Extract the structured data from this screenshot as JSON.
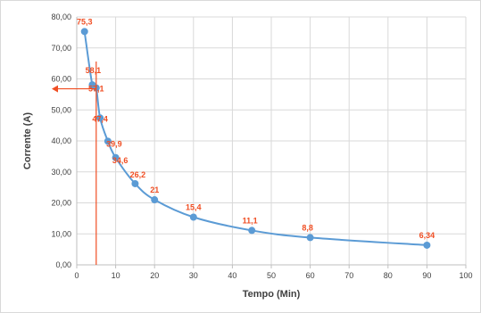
{
  "chart_data": {
    "type": "scatter",
    "title": "",
    "xlabel": "Tempo (Min)",
    "ylabel": "Corrente (A)",
    "xlim": [
      0,
      100
    ],
    "ylim": [
      0,
      80
    ],
    "x_ticks": [
      "0",
      "10",
      "20",
      "30",
      "40",
      "50",
      "60",
      "70",
      "80",
      "90",
      "100"
    ],
    "y_ticks": [
      "0,00",
      "10,00",
      "20,00",
      "30,00",
      "40,00",
      "50,00",
      "60,00",
      "70,00",
      "80,00"
    ],
    "grid": true,
    "legend": "none",
    "series": [
      {
        "x": [
          2,
          4,
          5,
          6,
          8,
          10,
          15,
          20,
          30,
          45,
          60,
          90
        ],
        "y": [
          75.3,
          58.1,
          57.1,
          47.4,
          39.9,
          34.6,
          26.2,
          21,
          15.4,
          11.1,
          8.8,
          6.34
        ],
        "labels": [
          "75,3",
          "58,1",
          "57,1",
          "47,4",
          "39,9",
          "34,6",
          "26,2",
          "21",
          "15,4",
          "11,1",
          "8,8",
          "6,34"
        ],
        "style": "smooth line with markers"
      }
    ],
    "annotations": {
      "vertical_line_x": 5,
      "arrow_y": 57.1
    },
    "colors": {
      "series": "#5b9bd5",
      "labels": "#f04e23",
      "annotation": "#f04e23",
      "grid": "#d9d9d9",
      "axis": "#bfbfbf"
    }
  }
}
